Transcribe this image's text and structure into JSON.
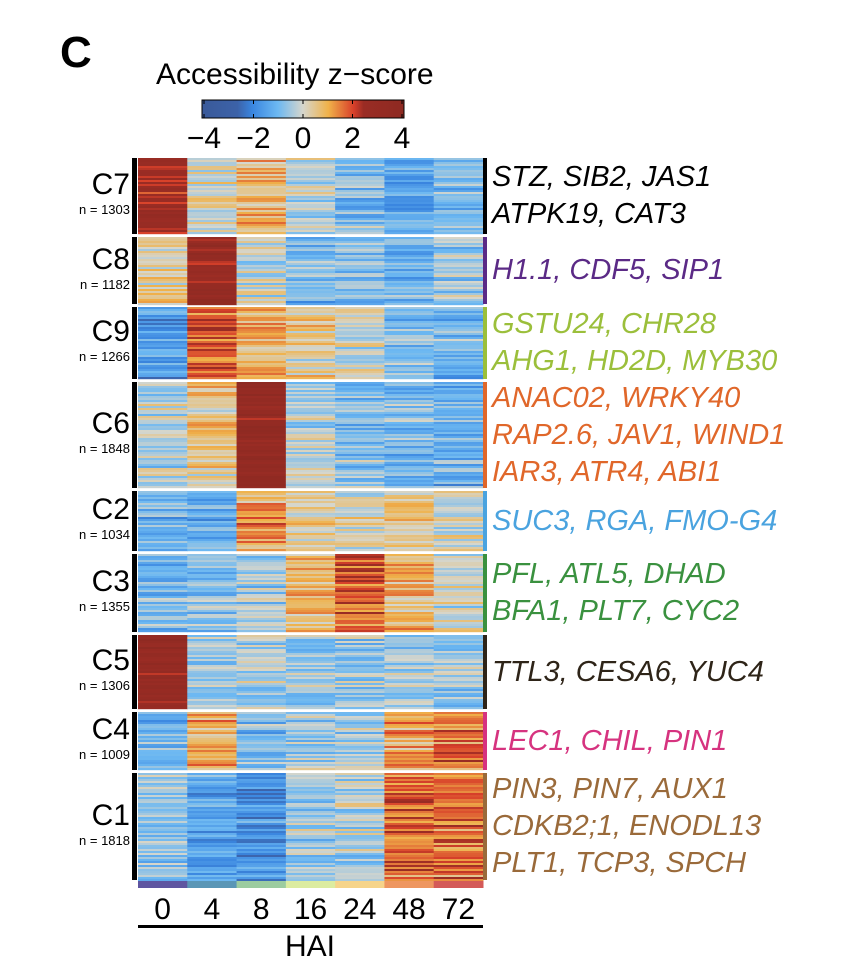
{
  "panel_label": "C",
  "chart_data": {
    "type": "heatmap",
    "colorbar": {
      "title": "Accessibility z−score",
      "ticks": [
        "−4",
        "−2",
        "0",
        "2",
        "4"
      ],
      "range": [
        -4,
        4
      ],
      "stops": [
        [
          -4,
          "#3a5a9a"
        ],
        [
          -2.6,
          "#3c62a8"
        ],
        [
          -2,
          "#3a86e0"
        ],
        [
          -1,
          "#6cb8f2"
        ],
        [
          0,
          "#d6d6cc"
        ],
        [
          1,
          "#f0b24a"
        ],
        [
          2,
          "#d8402a"
        ],
        [
          2.4,
          "#9a2c24"
        ],
        [
          4,
          "#8e2a22"
        ]
      ]
    },
    "xlabel": "HAI",
    "x": [
      "0",
      "4",
      "8",
      "16",
      "24",
      "48",
      "72"
    ],
    "x_colors": [
      "#5e55a0",
      "#5a96b6",
      "#9ccca0",
      "#dcecA0",
      "#f6d48a",
      "#ee9660",
      "#d45a58"
    ],
    "clusters": [
      {
        "name": "C7",
        "n": "n = 1303",
        "color": "#000000",
        "genes": [
          "STZ, SIB2, JAS1",
          "ATPK19, CAT3"
        ],
        "mean": [
          2.5,
          0,
          0.7,
          -0.3,
          -0.8,
          -1.3,
          -1.0
        ]
      },
      {
        "name": "C8",
        "n": "n = 1182",
        "color": "#5b2a86",
        "genes": [
          "H1.1, CDF5, SIP1"
        ],
        "mean": [
          0.3,
          3.0,
          0,
          -1.0,
          -0.8,
          -1.0,
          -0.6
        ]
      },
      {
        "name": "C9",
        "n": "n = 1266",
        "color": "#9bbf3b",
        "genes": [
          "GSTU24, CHR28",
          "AHG1, HD2D, MYB30"
        ],
        "mean": [
          -1.5,
          1.8,
          1.0,
          0.3,
          0,
          -0.7,
          -1.0
        ]
      },
      {
        "name": "C6",
        "n": "n = 1848",
        "color": "#e0672a",
        "genes": [
          "ANAC02, WRKY40",
          "RAP2.6, JAV1, WIND1",
          "IAR3, ATR4, ABI1"
        ],
        "mean": [
          -0.3,
          0.5,
          3.2,
          -0.3,
          -0.8,
          -1.0,
          -1.2
        ]
      },
      {
        "name": "C2",
        "n": "n = 1034",
        "color": "#4aa3df",
        "genes": [
          "SUC3, RGA, FMO-G4"
        ],
        "mean": [
          -1.0,
          -1.3,
          1.2,
          0.5,
          0.2,
          0.5,
          0
        ]
      },
      {
        "name": "C3",
        "n": "n = 1355",
        "color": "#3a913f",
        "genes": [
          "PFL, ATL5, DHAD",
          "BFA1, PLT7, CYC2"
        ],
        "mean": [
          -1.0,
          -0.8,
          -0.5,
          0.8,
          1.7,
          0.8,
          0
        ]
      },
      {
        "name": "C5",
        "n": "n = 1306",
        "color": "#2e2418",
        "genes": [
          "TTL3, CESA6, YUC4"
        ],
        "mean": [
          3.0,
          -0.5,
          -0.3,
          -0.5,
          -0.5,
          -0.5,
          -0.5
        ]
      },
      {
        "name": "C4",
        "n": "n = 1009",
        "color": "#d6337f",
        "genes": [
          "LEC1, CHIL, PIN1"
        ],
        "mean": [
          -1.0,
          1.0,
          -0.8,
          -0.5,
          -0.5,
          1.0,
          1.5
        ]
      },
      {
        "name": "C1",
        "n": "n = 1818",
        "color": "#9a6a3a",
        "genes": [
          "PIN3, PIN7, AUX1",
          "CDKB2;1, ENODL13",
          "PLT1, TCP3, SPCH"
        ],
        "mean": [
          -0.5,
          -1.3,
          -1.6,
          -0.5,
          -0.3,
          1.6,
          1.5
        ]
      }
    ]
  }
}
